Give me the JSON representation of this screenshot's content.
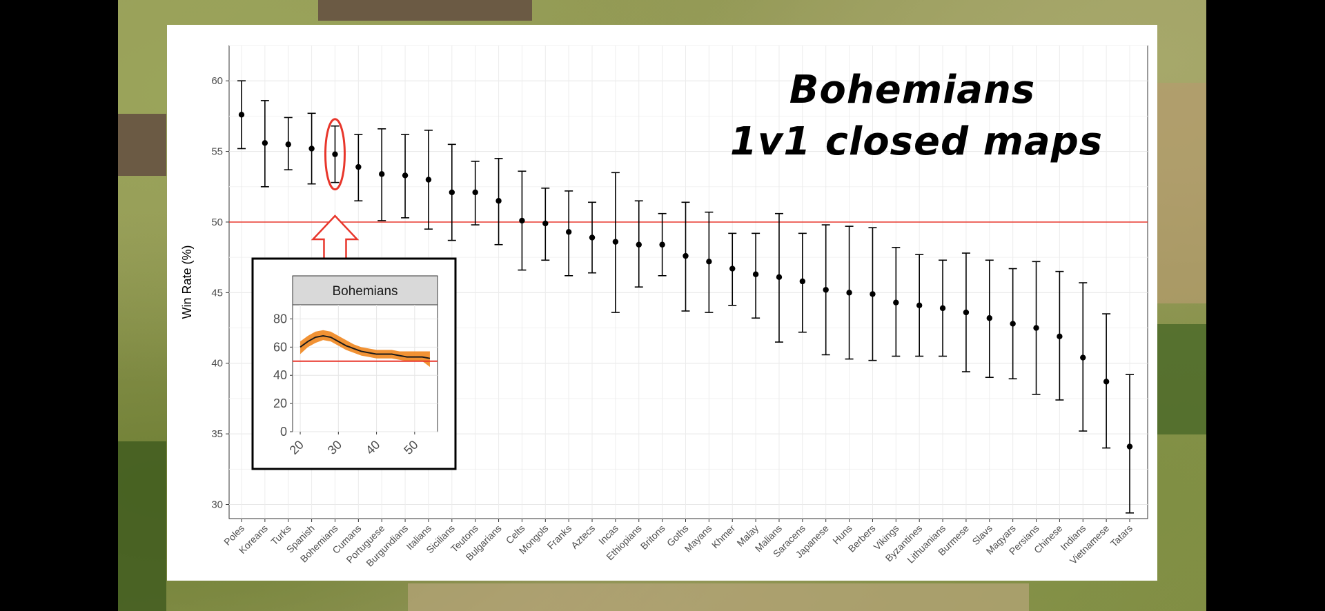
{
  "chart_data": [
    {
      "type": "scatter",
      "title": "Bohemians 1v1 closed maps",
      "title_lines": [
        "Bohemians",
        "1v1 closed maps"
      ],
      "xlabel": "",
      "ylabel": "Win Rate (%)",
      "ylim": [
        29,
        62.5
      ],
      "yticks": [
        30,
        35,
        40,
        45,
        50,
        55,
        60
      ],
      "grid": true,
      "reference_line": 50,
      "reference_line_color": "#e8362b",
      "point_color": "#000000",
      "highlight": {
        "category": "Bohemians",
        "marker": "red ellipse with outlined arrow pointing up",
        "color": "#e8362b"
      },
      "categories": [
        "Poles",
        "Koreans",
        "Turks",
        "Spanish",
        "Bohemians",
        "Cumans",
        "Portuguese",
        "Burgundians",
        "Italians",
        "Sicilians",
        "Teutons",
        "Bulgarians",
        "Celts",
        "Mongols",
        "Franks",
        "Aztecs",
        "Incas",
        "Ethiopians",
        "Britons",
        "Goths",
        "Mayans",
        "Khmer",
        "Malay",
        "Malians",
        "Saracens",
        "Japanese",
        "Huns",
        "Berbers",
        "Vikings",
        "Byzantines",
        "Lithuanians",
        "Burmese",
        "Slavs",
        "Magyars",
        "Persians",
        "Chinese",
        "Indians",
        "Vietnamese",
        "Tatars"
      ],
      "values": [
        57.6,
        55.6,
        55.5,
        55.2,
        54.8,
        53.9,
        53.4,
        53.3,
        53.0,
        52.1,
        52.1,
        51.5,
        50.1,
        49.9,
        49.3,
        48.9,
        48.6,
        48.4,
        48.4,
        47.6,
        47.2,
        46.7,
        46.3,
        46.1,
        45.8,
        45.2,
        45.0,
        44.9,
        44.3,
        44.1,
        43.9,
        43.6,
        43.2,
        42.8,
        42.5,
        41.9,
        40.4,
        38.7,
        34.1
      ],
      "lower": [
        55.2,
        52.5,
        53.7,
        52.7,
        52.8,
        51.5,
        50.1,
        50.3,
        49.5,
        48.7,
        49.8,
        48.4,
        46.6,
        47.3,
        46.2,
        46.4,
        43.6,
        45.4,
        46.2,
        43.7,
        43.6,
        44.1,
        43.2,
        41.5,
        42.2,
        40.6,
        40.3,
        40.2,
        40.5,
        40.5,
        40.5,
        39.4,
        39.0,
        38.9,
        37.8,
        37.4,
        35.2,
        34.0,
        29.4
      ],
      "upper": [
        60.0,
        58.6,
        57.4,
        57.7,
        56.8,
        56.2,
        56.6,
        56.2,
        56.5,
        55.5,
        54.3,
        54.5,
        53.6,
        52.4,
        52.2,
        51.4,
        53.5,
        51.5,
        50.6,
        51.4,
        50.7,
        49.2,
        49.2,
        50.6,
        49.2,
        49.8,
        49.7,
        49.6,
        48.2,
        47.7,
        47.3,
        47.8,
        47.3,
        46.7,
        47.2,
        46.5,
        45.7,
        43.5,
        39.2
      ]
    },
    {
      "type": "area",
      "title": "Bohemians",
      "xlabel": "",
      "ylabel": "",
      "xlim": [
        18,
        56
      ],
      "ylim": [
        0,
        90
      ],
      "xticks": [
        20,
        30,
        40,
        50
      ],
      "yticks": [
        0,
        20,
        40,
        60,
        80
      ],
      "reference_line": 50,
      "line_color": "#1a1a1a",
      "band_color": "#f0861e",
      "x": [
        20,
        22,
        24,
        26,
        28,
        30,
        32,
        34,
        36,
        38,
        40,
        42,
        44,
        46,
        48,
        50,
        52,
        54
      ],
      "values": [
        60,
        64,
        67,
        68,
        67,
        64,
        61,
        59,
        57,
        56,
        55,
        55,
        55,
        54,
        53,
        53,
        53,
        52
      ],
      "lower": [
        55,
        60,
        63,
        65,
        64,
        61,
        58,
        56,
        54,
        53,
        52,
        52,
        52,
        51,
        50,
        50,
        50,
        46
      ],
      "upper": [
        64,
        68,
        71,
        72,
        71,
        68,
        65,
        62,
        60,
        59,
        58,
        58,
        58,
        57,
        57,
        57,
        57,
        57
      ]
    }
  ]
}
